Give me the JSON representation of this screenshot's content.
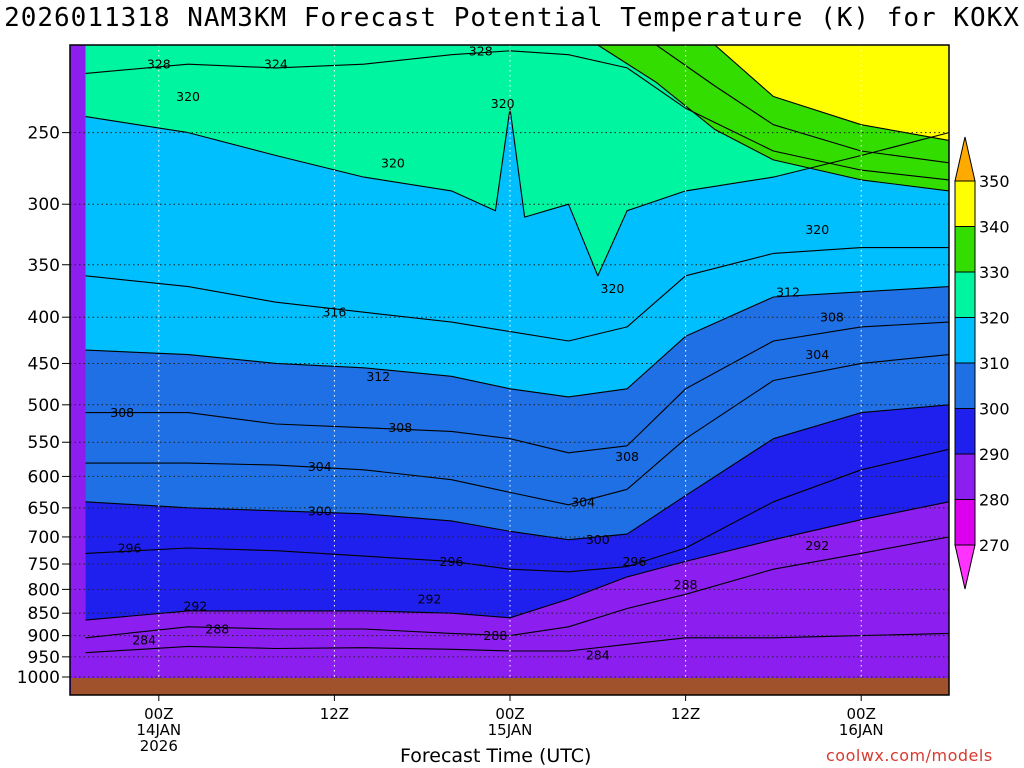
{
  "page": {
    "title": "2026011318 NAM3KM Forecast Potential Temperature (K) for KOKX",
    "credit": "coolwx.com/models"
  },
  "chart_data": {
    "type": "contour",
    "title": "2026011318 NAM3KM Forecast Potential Temperature (K) for KOKX",
    "xlabel": "Forecast Time (UTC)",
    "ylabel": "",
    "units": "K",
    "y_axis": {
      "scale": "pressure (log, inverted)",
      "range_hpa": [
        1000,
        200
      ],
      "ticks": [
        250,
        300,
        350,
        400,
        450,
        500,
        550,
        600,
        650,
        700,
        750,
        800,
        850,
        900,
        950,
        1000
      ]
    },
    "x_axis": {
      "range_hours": [
        0,
        60
      ],
      "ticks": [
        {
          "hour": 6,
          "lines": [
            "00Z",
            "14JAN",
            "2026"
          ]
        },
        {
          "hour": 18,
          "lines": [
            "12Z"
          ]
        },
        {
          "hour": 30,
          "lines": [
            "00Z",
            "15JAN"
          ]
        },
        {
          "hour": 42,
          "lines": [
            "12Z"
          ]
        },
        {
          "hour": 54,
          "lines": [
            "00Z",
            "16JAN"
          ]
        }
      ]
    },
    "grid": true,
    "colorbar": {
      "levels": [
        270,
        280,
        290,
        300,
        310,
        320,
        330,
        340,
        350
      ],
      "colors": [
        "#ff33ff",
        "#dd00ee",
        "#8c1ff0",
        "#2020ee",
        "#1f70e5",
        "#00bfff",
        "#00f5a0",
        "#33dd00",
        "#ffff00",
        "#ffaa00"
      ],
      "extend": "both",
      "placement": "right"
    },
    "contour_interval": 4,
    "contours": [
      {
        "value": 284,
        "points": [
          [
            1,
            940
          ],
          [
            8,
            925
          ],
          [
            14,
            930
          ],
          [
            20,
            928
          ],
          [
            26,
            932
          ],
          [
            30,
            936
          ],
          [
            34,
            936
          ],
          [
            38,
            920
          ],
          [
            42,
            905
          ],
          [
            48,
            905
          ],
          [
            54,
            900
          ],
          [
            60,
            895
          ]
        ]
      },
      {
        "value": 288,
        "points": [
          [
            1,
            905
          ],
          [
            8,
            880
          ],
          [
            14,
            885
          ],
          [
            20,
            885
          ],
          [
            26,
            895
          ],
          [
            30,
            900
          ],
          [
            34,
            880
          ],
          [
            38,
            840
          ],
          [
            42,
            810
          ],
          [
            48,
            760
          ],
          [
            54,
            730
          ],
          [
            60,
            700
          ]
        ]
      },
      {
        "value": 292,
        "points": [
          [
            1,
            865
          ],
          [
            8,
            845
          ],
          [
            14,
            845
          ],
          [
            20,
            845
          ],
          [
            26,
            850
          ],
          [
            30,
            860
          ],
          [
            34,
            820
          ],
          [
            38,
            775
          ],
          [
            42,
            745
          ],
          [
            48,
            705
          ],
          [
            54,
            670
          ],
          [
            60,
            640
          ]
        ]
      },
      {
        "value": 296,
        "points": [
          [
            1,
            730
          ],
          [
            8,
            720
          ],
          [
            14,
            725
          ],
          [
            20,
            735
          ],
          [
            26,
            745
          ],
          [
            30,
            760
          ],
          [
            34,
            765
          ],
          [
            38,
            755
          ],
          [
            42,
            720
          ],
          [
            48,
            640
          ],
          [
            54,
            590
          ],
          [
            60,
            560
          ]
        ]
      },
      {
        "value": 300,
        "points": [
          [
            1,
            640
          ],
          [
            8,
            650
          ],
          [
            14,
            655
          ],
          [
            20,
            660
          ],
          [
            26,
            672
          ],
          [
            30,
            690
          ],
          [
            34,
            705
          ],
          [
            38,
            695
          ],
          [
            42,
            630
          ],
          [
            48,
            545
          ],
          [
            54,
            510
          ],
          [
            60,
            500
          ]
        ]
      },
      {
        "value": 304,
        "points": [
          [
            1,
            580
          ],
          [
            8,
            580
          ],
          [
            14,
            583
          ],
          [
            20,
            590
          ],
          [
            26,
            605
          ],
          [
            30,
            625
          ],
          [
            34,
            645
          ],
          [
            38,
            620
          ],
          [
            42,
            545
          ],
          [
            48,
            470
          ],
          [
            54,
            450
          ],
          [
            60,
            440
          ]
        ]
      },
      {
        "value": 308,
        "points": [
          [
            1,
            510
          ],
          [
            8,
            510
          ],
          [
            14,
            525
          ],
          [
            20,
            530
          ],
          [
            26,
            535
          ],
          [
            30,
            545
          ],
          [
            34,
            565
          ],
          [
            38,
            555
          ],
          [
            42,
            480
          ],
          [
            48,
            425
          ],
          [
            54,
            410
          ],
          [
            60,
            405
          ]
        ]
      },
      {
        "value": 312,
        "points": [
          [
            1,
            435
          ],
          [
            8,
            440
          ],
          [
            14,
            450
          ],
          [
            20,
            455
          ],
          [
            26,
            465
          ],
          [
            30,
            480
          ],
          [
            34,
            490
          ],
          [
            38,
            480
          ],
          [
            42,
            420
          ],
          [
            48,
            380
          ],
          [
            54,
            375
          ],
          [
            60,
            370
          ]
        ]
      },
      {
        "value": 316,
        "points": [
          [
            1,
            360
          ],
          [
            8,
            370
          ],
          [
            14,
            385
          ],
          [
            20,
            395
          ],
          [
            26,
            405
          ],
          [
            30,
            415
          ],
          [
            34,
            425
          ],
          [
            38,
            410
          ],
          [
            42,
            360
          ],
          [
            48,
            340
          ],
          [
            54,
            335
          ],
          [
            60,
            335
          ]
        ]
      },
      {
        "value": 320,
        "points": [
          [
            1,
            240
          ],
          [
            8,
            250
          ],
          [
            14,
            265
          ],
          [
            20,
            280
          ],
          [
            26,
            290
          ],
          [
            29,
            305
          ],
          [
            30,
            235
          ],
          [
            31,
            310
          ],
          [
            34,
            300
          ],
          [
            36,
            360
          ],
          [
            38,
            305
          ],
          [
            42,
            290
          ],
          [
            48,
            280
          ],
          [
            54,
            265
          ],
          [
            60,
            250
          ]
        ]
      },
      {
        "value": 328,
        "points": [
          [
            1,
            215
          ],
          [
            8,
            210
          ],
          [
            14,
            212
          ],
          [
            20,
            210
          ],
          [
            26,
            205
          ],
          [
            30,
            203
          ],
          [
            34,
            205
          ],
          [
            38,
            212
          ],
          [
            42,
            235
          ],
          [
            48,
            262
          ],
          [
            54,
            275
          ],
          [
            60,
            282
          ]
        ]
      },
      {
        "value": 332,
        "points": [
          [
            36,
            200
          ],
          [
            40,
            220
          ],
          [
            44,
            248
          ],
          [
            48,
            268
          ],
          [
            54,
            282
          ],
          [
            60,
            290
          ]
        ]
      },
      {
        "value": 336,
        "points": [
          [
            40,
            200
          ],
          [
            44,
            222
          ],
          [
            48,
            245
          ],
          [
            54,
            262
          ],
          [
            60,
            270
          ]
        ]
      },
      {
        "value": 340,
        "points": [
          [
            44,
            200
          ],
          [
            48,
            228
          ],
          [
            54,
            245
          ],
          [
            60,
            255
          ]
        ]
      }
    ],
    "contour_labels": [
      {
        "value": 328,
        "hour": 6,
        "hpa": 210
      },
      {
        "value": 324,
        "hour": 14,
        "hpa": 210
      },
      {
        "value": 328,
        "hour": 28,
        "hpa": 203
      },
      {
        "value": 320,
        "hour": 8,
        "hpa": 228
      },
      {
        "value": 320,
        "hour": 29.5,
        "hpa": 232
      },
      {
        "value": 320,
        "hour": 22,
        "hpa": 270
      },
      {
        "value": 320,
        "hour": 37,
        "hpa": 372
      },
      {
        "value": 320,
        "hour": 51,
        "hpa": 320
      },
      {
        "value": 316,
        "hour": 18,
        "hpa": 395
      },
      {
        "value": 312,
        "hour": 21,
        "hpa": 465
      },
      {
        "value": 312,
        "hour": 49,
        "hpa": 375
      },
      {
        "value": 308,
        "hour": 3.5,
        "hpa": 510
      },
      {
        "value": 308,
        "hour": 22.5,
        "hpa": 530
      },
      {
        "value": 308,
        "hour": 38,
        "hpa": 570
      },
      {
        "value": 308,
        "hour": 52,
        "hpa": 400
      },
      {
        "value": 304,
        "hour": 17,
        "hpa": 585
      },
      {
        "value": 304,
        "hour": 35,
        "hpa": 640
      },
      {
        "value": 304,
        "hour": 51,
        "hpa": 440
      },
      {
        "value": 300,
        "hour": 17,
        "hpa": 655
      },
      {
        "value": 300,
        "hour": 36,
        "hpa": 705
      },
      {
        "value": 296,
        "hour": 4,
        "hpa": 720
      },
      {
        "value": 296,
        "hour": 26,
        "hpa": 745
      },
      {
        "value": 296,
        "hour": 38.5,
        "hpa": 745
      },
      {
        "value": 292,
        "hour": 8.5,
        "hpa": 835
      },
      {
        "value": 292,
        "hour": 24.5,
        "hpa": 820
      },
      {
        "value": 292,
        "hour": 51,
        "hpa": 715
      },
      {
        "value": 288,
        "hour": 10,
        "hpa": 885
      },
      {
        "value": 288,
        "hour": 29,
        "hpa": 900
      },
      {
        "value": 288,
        "hour": 42,
        "hpa": 790
      },
      {
        "value": 284,
        "hour": 5,
        "hpa": 910
      },
      {
        "value": 284,
        "hour": 36,
        "hpa": 945
      }
    ]
  }
}
